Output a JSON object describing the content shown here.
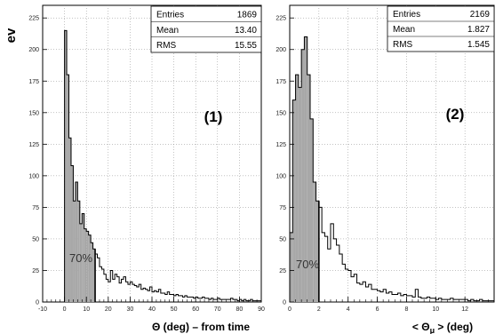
{
  "y_axis_label": "ev",
  "chart_data": [
    {
      "type": "bar",
      "panel_label": "(1)",
      "xlabel": "Θ (deg) – from time",
      "ylabel": "ev",
      "xlim": [
        -10,
        90
      ],
      "ylim": [
        0,
        235
      ],
      "x_ticks": [
        -10,
        0,
        10,
        20,
        30,
        40,
        50,
        60,
        70,
        80,
        90
      ],
      "y_ticks": [
        0,
        25,
        50,
        75,
        100,
        125,
        150,
        175,
        200,
        225
      ],
      "bin_width": 1,
      "x_start": 0,
      "values": [
        215,
        180,
        130,
        108,
        80,
        95,
        80,
        62,
        70,
        58,
        56,
        53,
        47,
        42,
        38,
        35,
        28,
        26,
        22,
        18,
        16,
        25,
        18,
        22,
        20,
        15,
        18,
        20,
        16,
        14,
        16,
        14,
        13,
        12,
        14,
        10,
        11,
        10,
        9,
        12,
        8,
        9,
        8,
        10,
        7,
        7,
        6,
        8,
        6,
        6,
        5,
        6,
        5,
        5,
        4,
        5,
        4,
        4,
        4,
        3,
        4,
        3,
        3,
        4,
        3,
        3,
        2,
        3,
        2,
        2,
        3,
        2,
        2,
        2,
        2,
        2,
        3,
        2,
        2,
        1,
        2,
        1,
        2,
        1,
        1,
        2,
        1,
        1,
        1,
        1
      ],
      "shaded_upper_x": 14,
      "shaded_label": "70%",
      "stats": {
        "Entries": "1869",
        "Mean": "13.40",
        "RMS": "15.55"
      },
      "colors": {
        "shade": "#a8a8a8",
        "outline": "#000000"
      }
    },
    {
      "type": "bar",
      "panel_label": "(2)",
      "xlabel": "< Θ",
      "xlabel_sub": "μ",
      "xlabel_tail": " > (deg)",
      "ylabel": "",
      "xlim": [
        0,
        14
      ],
      "ylim": [
        0,
        235
      ],
      "x_ticks": [
        0,
        2,
        4,
        6,
        8,
        10,
        12
      ],
      "y_ticks": [
        0,
        25,
        50,
        75,
        100,
        125,
        150,
        175,
        200,
        225
      ],
      "bin_width": 0.2,
      "x_start": 0,
      "values": [
        55,
        160,
        180,
        170,
        200,
        210,
        180,
        145,
        95,
        80,
        75,
        55,
        52,
        42,
        62,
        50,
        45,
        38,
        30,
        26,
        25,
        20,
        22,
        15,
        14,
        16,
        12,
        14,
        10,
        10,
        9,
        8,
        10,
        7,
        8,
        6,
        6,
        7,
        5,
        6,
        5,
        5,
        4,
        10,
        4,
        3,
        3,
        4,
        3,
        3,
        2,
        3,
        2,
        2,
        2,
        3,
        2,
        2,
        2,
        2,
        2,
        1,
        2,
        1,
        1,
        2,
        1,
        1,
        1,
        1
      ],
      "shaded_upper_x": 2.0,
      "shaded_label": "70%",
      "stats": {
        "Entries": "2169",
        "Mean": "1.827",
        "RMS": "1.545"
      },
      "colors": {
        "shade": "#a8a8a8",
        "outline": "#000000"
      }
    }
  ]
}
